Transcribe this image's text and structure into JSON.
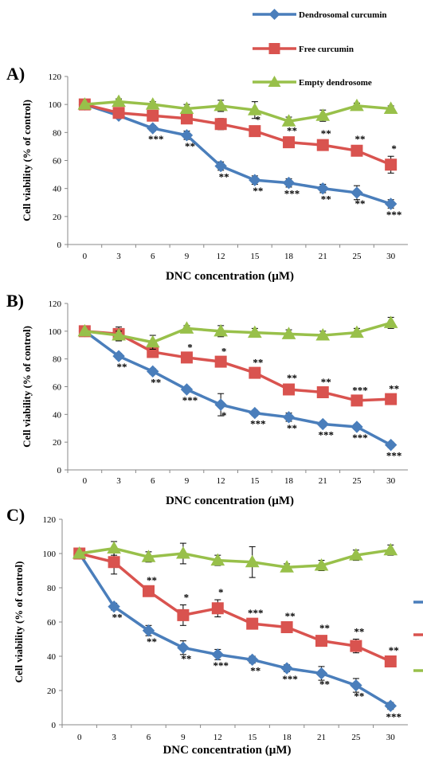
{
  "legend": {
    "position": "top-right",
    "entries": [
      {
        "name": "Dendrosomal curcumin",
        "color": "#4a7ebb",
        "marker": "diamond"
      },
      {
        "name": "Free curcumin",
        "color": "#d9534f",
        "marker": "square"
      },
      {
        "name": "Empty dendrosome",
        "color": "#98c04a",
        "marker": "triangle"
      }
    ]
  },
  "chart_data": [
    {
      "type": "line",
      "panel_label": "A)",
      "xlabel": "DNC concentration (µM)",
      "ylabel": "Cell viability (% of control)",
      "categories": [
        "0",
        "3",
        "6",
        "9",
        "12",
        "15",
        "18",
        "21",
        "25",
        "30"
      ],
      "ylim": [
        0,
        120
      ],
      "yticks": [
        0,
        20,
        40,
        60,
        80,
        100,
        120
      ],
      "grid": false,
      "series": [
        {
          "name": "Dendrosomal curcumin",
          "color": "#4a7ebb",
          "marker": "diamond",
          "values": [
            100,
            92,
            83,
            78,
            56,
            46,
            44,
            40,
            37,
            29
          ],
          "errors": [
            0,
            2,
            2,
            3,
            3,
            3,
            3,
            3,
            5,
            3
          ],
          "sig": [
            "",
            "",
            "***",
            "**",
            "**",
            "**",
            "***",
            "**",
            "**",
            "***"
          ]
        },
        {
          "name": "Free curcumin",
          "color": "#d9534f",
          "marker": "square",
          "values": [
            100,
            94,
            92,
            90,
            86,
            81,
            73,
            71,
            67,
            57
          ],
          "errors": [
            0,
            2,
            2,
            3,
            4,
            3,
            3,
            3,
            3,
            6
          ],
          "sig": [
            "",
            "",
            "",
            "",
            "",
            "*",
            "**",
            "**",
            "**",
            "*"
          ]
        },
        {
          "name": "Empty dendrosome",
          "color": "#98c04a",
          "marker": "triangle",
          "values": [
            100,
            102,
            100,
            97,
            99,
            96,
            88,
            92,
            99,
            97
          ],
          "errors": [
            0,
            2,
            2,
            3,
            4,
            6,
            3,
            4,
            2,
            2
          ],
          "sig": [
            "",
            "",
            "",
            "",
            "",
            "",
            "",
            "",
            "",
            ""
          ]
        }
      ]
    },
    {
      "type": "line",
      "panel_label": "B)",
      "xlabel": "DNC concentration (µM)",
      "ylabel": "Cell viability (% of control)",
      "categories": [
        "0",
        "3",
        "6",
        "9",
        "12",
        "15",
        "18",
        "21",
        "25",
        "30"
      ],
      "ylim": [
        0,
        120
      ],
      "yticks": [
        0,
        20,
        40,
        60,
        80,
        100,
        120
      ],
      "grid": false,
      "series": [
        {
          "name": "Dendrosomal curcumin",
          "color": "#4a7ebb",
          "marker": "diamond",
          "values": [
            100,
            82,
            71,
            58,
            47,
            41,
            38,
            33,
            31,
            18
          ],
          "errors": [
            0,
            2,
            2,
            2,
            8,
            2,
            3,
            2,
            2,
            2
          ],
          "sig": [
            "",
            "**",
            "**",
            "***",
            "*",
            "***",
            "**",
            "***",
            "***",
            "***"
          ]
        },
        {
          "name": "Free curcumin",
          "color": "#d9534f",
          "marker": "square",
          "values": [
            100,
            98,
            85,
            81,
            78,
            70,
            58,
            56,
            50,
            51
          ],
          "errors": [
            0,
            5,
            3,
            2,
            2,
            2,
            3,
            2,
            2,
            2
          ],
          "sig": [
            "",
            "",
            "",
            "*",
            "*",
            "**",
            "**",
            "**",
            "***",
            "**"
          ]
        },
        {
          "name": "Empty dendrosome",
          "color": "#98c04a",
          "marker": "triangle",
          "values": [
            100,
            97,
            92,
            102,
            100,
            99,
            98,
            97,
            99,
            106
          ],
          "errors": [
            0,
            3,
            5,
            2,
            4,
            3,
            3,
            3,
            3,
            4
          ],
          "sig": [
            "",
            "",
            "",
            "",
            "",
            "",
            "",
            "",
            "",
            ""
          ]
        }
      ]
    },
    {
      "type": "line",
      "panel_label": "C)",
      "xlabel": "DNC concentration (µM)",
      "ylabel": "Cell viability (% of control)",
      "categories": [
        "0",
        "3",
        "6",
        "9",
        "12",
        "15",
        "18",
        "21",
        "25",
        "30"
      ],
      "ylim": [
        0,
        120
      ],
      "yticks": [
        0,
        20,
        40,
        60,
        80,
        100,
        120
      ],
      "grid": false,
      "series": [
        {
          "name": "Dendrosomal curcumin",
          "color": "#4a7ebb",
          "marker": "diamond",
          "values": [
            100,
            69,
            55,
            45,
            41,
            38,
            33,
            30,
            23,
            11
          ],
          "errors": [
            0,
            2,
            3,
            4,
            3,
            2,
            2,
            4,
            4,
            2
          ],
          "sig": [
            "",
            "**",
            "**",
            "**",
            "***",
            "**",
            "***",
            "**",
            "**",
            "***"
          ]
        },
        {
          "name": "Free curcumin",
          "color": "#d9534f",
          "marker": "square",
          "values": [
            100,
            95,
            78,
            64,
            68,
            59,
            57,
            49,
            46,
            37
          ],
          "errors": [
            0,
            7,
            2,
            6,
            5,
            2,
            2,
            3,
            4,
            2
          ],
          "sig": [
            "",
            "",
            "**",
            "*",
            "*",
            "***",
            "**",
            "**",
            "**",
            "**"
          ]
        },
        {
          "name": "Empty dendrosome",
          "color": "#98c04a",
          "marker": "triangle",
          "values": [
            100,
            103,
            98,
            100,
            96,
            95,
            92,
            93,
            99,
            102
          ],
          "errors": [
            0,
            4,
            3,
            6,
            3,
            9,
            2,
            3,
            3,
            3
          ],
          "sig": [
            "",
            "",
            "",
            "",
            "",
            "",
            "",
            "",
            "",
            ""
          ]
        }
      ]
    }
  ]
}
